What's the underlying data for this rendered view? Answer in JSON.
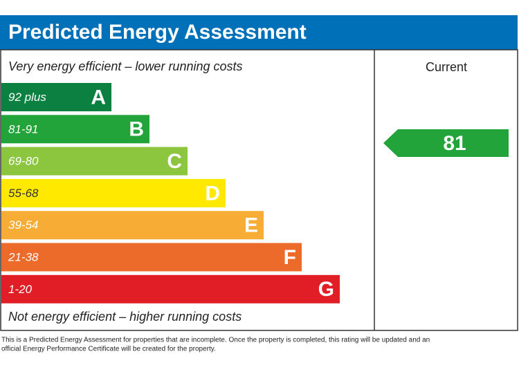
{
  "header": {
    "title": "Predicted Energy Assessment"
  },
  "top_label": "Very energy efficient – lower running costs",
  "bottom_label": "Not energy efficient – higher running costs",
  "bands": [
    {
      "range": "92 plus",
      "letter": "A",
      "color": "#0c8040"
    },
    {
      "range": "81-91",
      "letter": "B",
      "color": "#22a43a"
    },
    {
      "range": "69-80",
      "letter": "C",
      "color": "#8cc63e"
    },
    {
      "range": "55-68",
      "letter": "D",
      "color": "#ffe900"
    },
    {
      "range": "39-54",
      "letter": "E",
      "color": "#f7ad35"
    },
    {
      "range": "21-38",
      "letter": "F",
      "color": "#ec6a2a"
    },
    {
      "range": "1-20",
      "letter": "G",
      "color": "#e11d25"
    }
  ],
  "current": {
    "header": "Current",
    "value": 81,
    "color": "#22a43a"
  },
  "footer": [
    "This is a Predicted Energy Assessment for properties that are incomplete. Once the property is completed, this rating will be updated and an",
    "official Energy Performance Certificate will be created for the property."
  ]
}
